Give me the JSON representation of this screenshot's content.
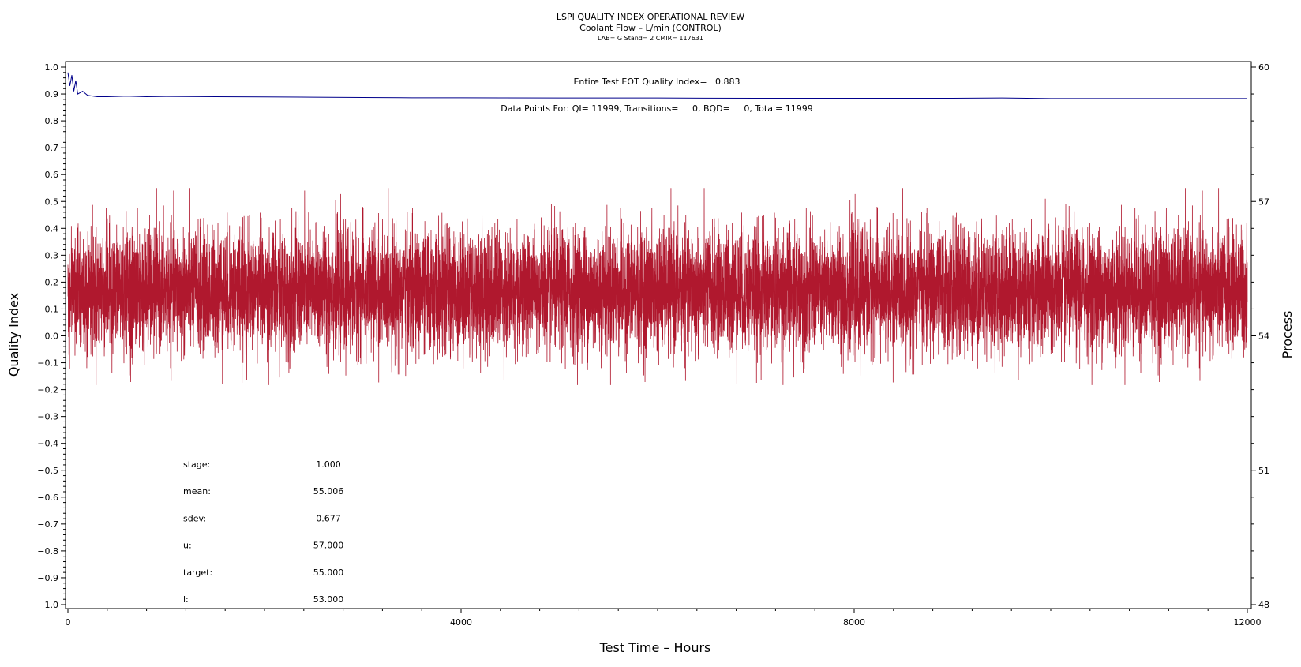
{
  "chart_data": {
    "type": "line",
    "title": "LSPI QUALITY INDEX OPERATIONAL REVIEW",
    "subtitle": "Coolant Flow – L/min (CONTROL)",
    "subtitle2": "LAB= G Stand= 2 CMIR= 117631",
    "xlabel": "Test Time – Hours",
    "ylabel": "Quality Index",
    "y2label": "Process",
    "xlim": [
      0,
      12000
    ],
    "ylim": [
      -1.0,
      1.0
    ],
    "y2lim": [
      48,
      60
    ],
    "x_ticks": [
      "0",
      "4000",
      "8000",
      "12000"
    ],
    "y_ticks": [
      "1.0",
      "0.9",
      "0.8",
      "0.7",
      "0.6",
      "0.5",
      "0.4",
      "0.3",
      "0.2",
      "0.1",
      "0.0",
      "−0.1",
      "−0.2",
      "−0.3",
      "−0.4",
      "−0.5",
      "−0.6",
      "−0.7",
      "−0.8",
      "−0.9",
      "−1.0"
    ],
    "y2_ticks": [
      "60",
      "57",
      "54",
      "51",
      "48"
    ],
    "grid": false,
    "annotations": {
      "eot_quality_index": "Entire Test EOT Quality Index=   0.883",
      "data_points": "Data Points For: QI= 11999, Transitions=     0, BQD=     0, Total= 11999"
    },
    "stats": [
      {
        "label": "stage:",
        "value": "1.000"
      },
      {
        "label": "mean:",
        "value": "55.006"
      },
      {
        "label": "sdev:",
        "value": "0.677"
      },
      {
        "label": "u:",
        "value": "57.000"
      },
      {
        "label": "target:",
        "value": "55.000"
      },
      {
        "label": "l:",
        "value": "53.000"
      }
    ],
    "series": [
      {
        "color": "#00008b",
        "axis": "left",
        "x": [
          0,
          20,
          40,
          60,
          80,
          100,
          150,
          200,
          300,
          400,
          600,
          800,
          1000,
          1500,
          2000,
          2500,
          3000,
          3500,
          4000,
          5000,
          6000,
          7000,
          8000,
          9000,
          9500,
          10000,
          11000,
          12000
        ],
        "values": [
          0.98,
          0.93,
          0.97,
          0.91,
          0.95,
          0.9,
          0.91,
          0.895,
          0.89,
          0.89,
          0.892,
          0.89,
          0.891,
          0.89,
          0.889,
          0.888,
          0.887,
          0.886,
          0.886,
          0.885,
          0.885,
          0.884,
          0.884,
          0.884,
          0.885,
          0.883,
          0.883,
          0.883
        ]
      },
      {
        "color": "#b0182e",
        "axis": "right",
        "mean": 55.006,
        "sdev": 0.677,
        "points": 11999,
        "x_range": [
          0,
          12000
        ],
        "range": [
          52.9,
          57.3
        ]
      }
    ]
  }
}
